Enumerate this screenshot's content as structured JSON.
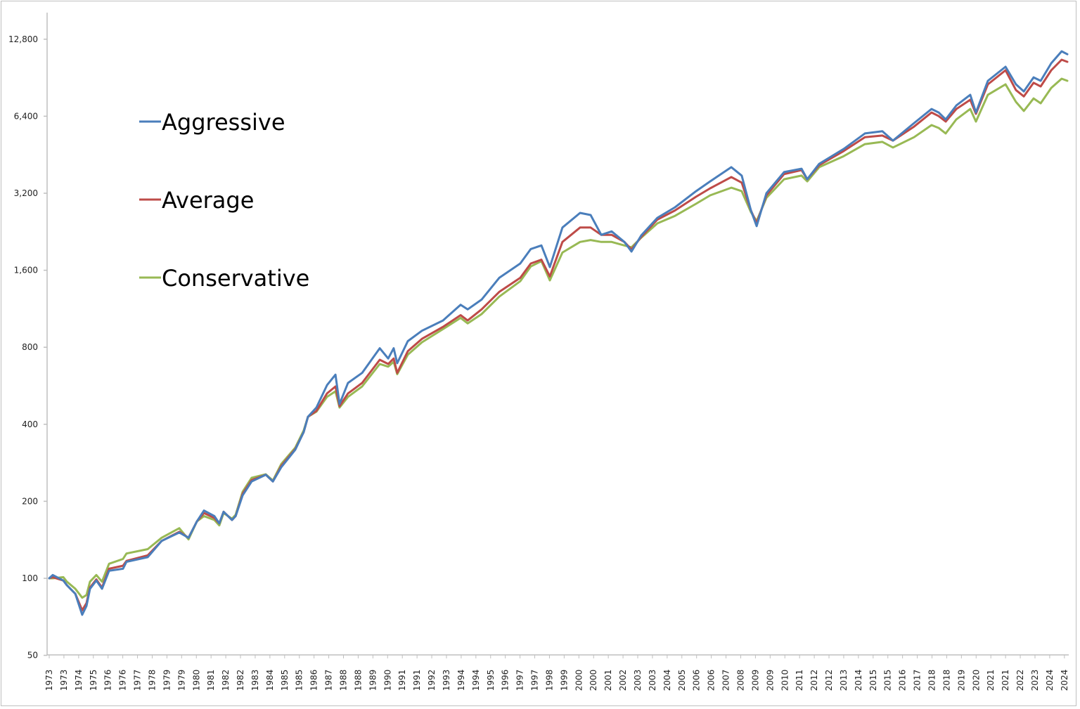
{
  "chart_data": {
    "type": "line",
    "title": "",
    "xlabel": "",
    "ylabel": "",
    "y_scale": "log2",
    "ylim": [
      50,
      12800
    ],
    "y_ticks": [
      50,
      100,
      200,
      400,
      800,
      1600,
      3200,
      6400,
      12800
    ],
    "y_tick_labels": [
      "50",
      "100",
      "200",
      "400",
      "800",
      "1,600",
      "3,200",
      "6,400",
      "12,800"
    ],
    "xlim": [
      1973.0,
      2024.9
    ],
    "x_tick_labels": [
      "1973",
      "1973",
      "1974",
      "1975",
      "1976",
      "1976",
      "1977",
      "1978",
      "1979",
      "1979",
      "1980",
      "1981",
      "1982",
      "1982",
      "1983",
      "1984",
      "1985",
      "1985",
      "1986",
      "1987",
      "1988",
      "1988",
      "1989",
      "1990",
      "1991",
      "1991",
      "1992",
      "1993",
      "1994",
      "1994",
      "1995",
      "1996",
      "1997",
      "1997",
      "1998",
      "1999",
      "2000",
      "2000",
      "2001",
      "2002",
      "2003",
      "2003",
      "2004",
      "2005",
      "2006",
      "2006",
      "2007",
      "2008",
      "2009",
      "2009",
      "2010",
      "2011",
      "2012",
      "2012",
      "2013",
      "2014",
      "2015",
      "2015",
      "2016",
      "2017",
      "2018",
      "2018",
      "2019",
      "2020",
      "2021",
      "2021",
      "2022",
      "2023",
      "2024",
      "2024"
    ],
    "grid": false,
    "legend_position": "top-left",
    "x": [
      1973.0,
      1973.18,
      1973.72,
      1973.9,
      1974.33,
      1974.68,
      1974.9,
      1975.08,
      1975.4,
      1975.69,
      1976.05,
      1976.76,
      1976.94,
      1978.02,
      1978.73,
      1979.63,
      1980.1,
      1980.53,
      1980.89,
      1981.42,
      1981.67,
      1981.89,
      1982.32,
      1982.5,
      1982.86,
      1983.32,
      1984.04,
      1984.4,
      1984.83,
      1985.54,
      1985.97,
      1986.19,
      1986.62,
      1987.16,
      1987.59,
      1987.8,
      1988.23,
      1988.95,
      1989.85,
      1990.28,
      1990.56,
      1990.74,
      1991.28,
      1992.0,
      1993.07,
      1993.97,
      1994.33,
      1995.04,
      1995.94,
      1997.01,
      1997.55,
      1998.09,
      1998.52,
      1999.16,
      2000.06,
      2000.6,
      2001.14,
      2001.67,
      2002.32,
      2002.68,
      2003.18,
      2004.0,
      2004.9,
      2005.97,
      2006.69,
      2007.77,
      2008.3,
      2008.77,
      2009.06,
      2009.56,
      2010.46,
      2011.35,
      2011.64,
      2012.25,
      2013.5,
      2014.58,
      2015.47,
      2016.01,
      2017.09,
      2017.98,
      2018.34,
      2018.7,
      2019.24,
      2019.95,
      2020.24,
      2020.85,
      2021.75,
      2022.28,
      2022.68,
      2023.18,
      2023.54,
      2024.08,
      2024.61,
      2024.9
    ],
    "series": [
      {
        "name": "Aggressive",
        "color": "#4a7ebb",
        "values": [
          100,
          103,
          98,
          94,
          87,
          72,
          78,
          91,
          98,
          91,
          107,
          109,
          116,
          121,
          140,
          151,
          144,
          167,
          184,
          175,
          164,
          182,
          169,
          175,
          211,
          239,
          254,
          239,
          272,
          318,
          373,
          428,
          465,
          569,
          625,
          480,
          580,
          635,
          793,
          723,
          793,
          693,
          845,
          928,
          1018,
          1173,
          1125,
          1228,
          1494,
          1700,
          1937,
          2000,
          1646,
          2350,
          2680,
          2630,
          2200,
          2270,
          2064,
          1893,
          2190,
          2565,
          2820,
          3260,
          3560,
          4045,
          3750,
          2740,
          2380,
          3200,
          3870,
          3990,
          3630,
          4170,
          4770,
          5480,
          5590,
          5140,
          6020,
          6830,
          6620,
          6220,
          7050,
          7760,
          6620,
          8800,
          9990,
          8530,
          8000,
          9080,
          8800,
          10310,
          11480,
          11180
        ]
      },
      {
        "name": "Average",
        "color": "#be4b48",
        "values": [
          100,
          101,
          98,
          94,
          87,
          75,
          80,
          92,
          99,
          92,
          109,
          112,
          117,
          123,
          140,
          152,
          144,
          167,
          180,
          172,
          164,
          182,
          169,
          175,
          214,
          242,
          254,
          239,
          275,
          320,
          373,
          428,
          451,
          528,
          562,
          471,
          528,
          580,
          715,
          688,
          723,
          635,
          772,
          863,
          961,
          1068,
          1018,
          1125,
          1317,
          1494,
          1700,
          1760,
          1513,
          2064,
          2350,
          2350,
          2200,
          2200,
          2064,
          1930,
          2160,
          2525,
          2740,
          3100,
          3345,
          3700,
          3520,
          2740,
          2440,
          3140,
          3800,
          3940,
          3630,
          4120,
          4680,
          5300,
          5380,
          5140,
          5830,
          6620,
          6410,
          6100,
          6830,
          7420,
          6540,
          8530,
          9680,
          8100,
          7650,
          8650,
          8370,
          9680,
          10640,
          10440
        ]
      },
      {
        "name": "Conservative",
        "color": "#98b954",
        "values": [
          100,
          100,
          101,
          97,
          91,
          84,
          86,
          97,
          103,
          97,
          114,
          119,
          125,
          130,
          144,
          157,
          142,
          167,
          175,
          169,
          161,
          180,
          171,
          177,
          218,
          247,
          255,
          241,
          280,
          324,
          378,
          428,
          448,
          512,
          538,
          465,
          512,
          562,
          688,
          672,
          702,
          628,
          748,
          837,
          942,
          1042,
          992,
          1078,
          1261,
          1450,
          1656,
          1737,
          1461,
          1876,
          2064,
          2100,
          2064,
          2064,
          2000,
          1967,
          2145,
          2440,
          2610,
          2910,
          3140,
          3365,
          3260,
          2700,
          2490,
          3070,
          3630,
          3750,
          3560,
          4045,
          4470,
          4980,
          5080,
          4830,
          5300,
          5910,
          5760,
          5480,
          6220,
          6830,
          6100,
          7760,
          8530,
          7280,
          6710,
          7510,
          7190,
          8260,
          8970,
          8800
        ]
      }
    ]
  }
}
